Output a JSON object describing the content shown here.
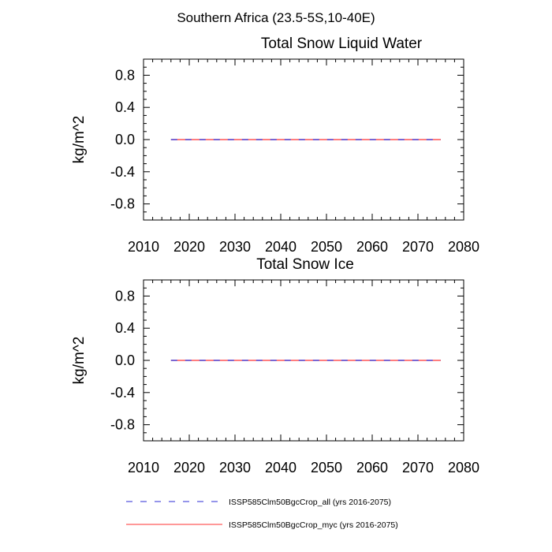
{
  "figure": {
    "suptitle": "Southern Africa (23.5-5S,10-40E)"
  },
  "legend": {
    "position": "bottom",
    "entries": [
      {
        "label": "ISSP585Clm50BgcCrop_all (yrs 2016-2075)",
        "color": "#2b2bd6",
        "style": "dashed"
      },
      {
        "label": "ISSP585Clm50BgcCrop_myc (yrs 2016-2075)",
        "color": "#ff3030",
        "style": "solid"
      }
    ]
  },
  "chart_data": [
    {
      "type": "line",
      "title": "Total Snow Liquid Water",
      "ylabel": "kg/m^2",
      "xlabel": "",
      "xlim": [
        2010,
        2080
      ],
      "ylim": [
        -1.0,
        1.0
      ],
      "xticks": [
        2010,
        2020,
        2030,
        2040,
        2050,
        2060,
        2070,
        2080
      ],
      "xtick_labels": [
        "2010",
        "2020",
        "2030",
        "2040",
        "2050",
        "2060",
        "2070",
        "2080"
      ],
      "yticks": [
        -0.8,
        -0.4,
        0.0,
        0.4,
        0.8
      ],
      "ytick_labels": [
        "-0.8",
        "-0.4",
        "0.0",
        "0.4",
        "0.8"
      ],
      "grid": false,
      "series": [
        {
          "name": "ISSP585Clm50BgcCrop_all (yrs 2016-2075)",
          "x": [
            2016,
            2075
          ],
          "values": [
            0.0,
            0.0
          ]
        },
        {
          "name": "ISSP585Clm50BgcCrop_myc (yrs 2016-2075)",
          "x": [
            2016,
            2075
          ],
          "values": [
            0.0,
            0.0
          ]
        }
      ]
    },
    {
      "type": "line",
      "title": "Total Snow Ice",
      "ylabel": "kg/m^2",
      "xlabel": "",
      "xlim": [
        2010,
        2080
      ],
      "ylim": [
        -1.0,
        1.0
      ],
      "xticks": [
        2010,
        2020,
        2030,
        2040,
        2050,
        2060,
        2070,
        2080
      ],
      "xtick_labels": [
        "2010",
        "2020",
        "2030",
        "2040",
        "2050",
        "2060",
        "2070",
        "2080"
      ],
      "yticks": [
        -0.8,
        -0.4,
        0.0,
        0.4,
        0.8
      ],
      "ytick_labels": [
        "-0.8",
        "-0.4",
        "0.0",
        "0.4",
        "0.8"
      ],
      "grid": false,
      "series": [
        {
          "name": "ISSP585Clm50BgcCrop_all (yrs 2016-2075)",
          "x": [
            2016,
            2075
          ],
          "values": [
            0.0,
            0.0
          ]
        },
        {
          "name": "ISSP585Clm50BgcCrop_myc (yrs 2016-2075)",
          "x": [
            2016,
            2075
          ],
          "values": [
            0.0,
            0.0
          ]
        }
      ]
    }
  ]
}
